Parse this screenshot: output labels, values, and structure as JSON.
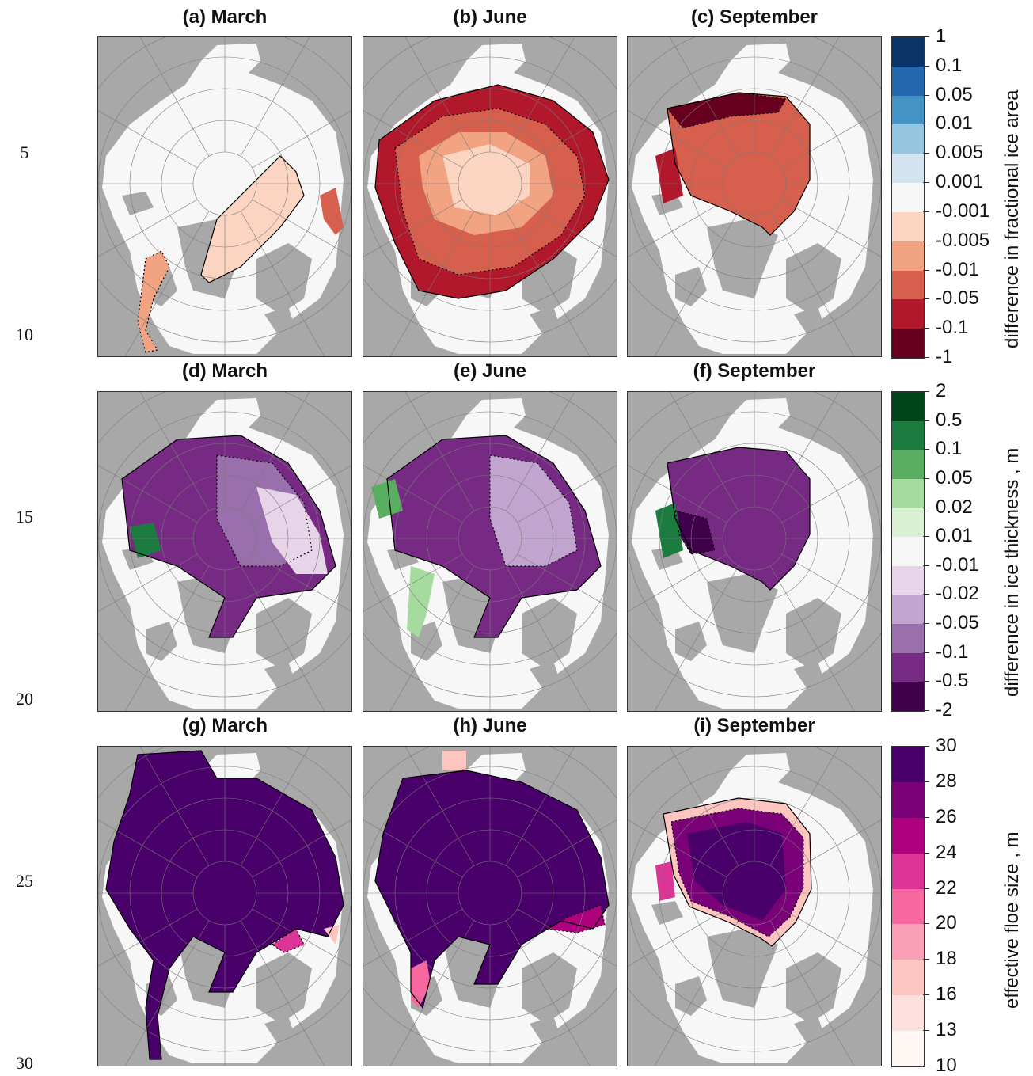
{
  "line_numbers": [
    "5",
    "10",
    "15",
    "20",
    "25",
    "30"
  ],
  "panel_titles": [
    "(a) March",
    "(b) June",
    "(c) September",
    "(d) March",
    "(e) June",
    "(f) September",
    "(g) March",
    "(h) June",
    "(i) September"
  ],
  "colorbars": [
    {
      "label": "difference in fractional ice area",
      "ticks": [
        "1",
        "0.1",
        "0.05",
        "0.01",
        "0.005",
        "0.001",
        "-0.001",
        "-0.005",
        "-0.01",
        "-0.05",
        "-0.1",
        "-1"
      ],
      "colors": [
        "#0b3466",
        "#2468ad",
        "#4495c6",
        "#94c6df",
        "#d2e4f0",
        "#f7f7f7",
        "#fbd5c1",
        "#f1a382",
        "#d6604d",
        "#b2182b",
        "#67001f"
      ]
    },
    {
      "label": "difference in ice thickness , m",
      "ticks": [
        "2",
        "0.5",
        "0.1",
        "0.05",
        "0.02",
        "0.01",
        "-0.01",
        "-0.02",
        "-0.05",
        "-0.1",
        "-0.5",
        "-2"
      ],
      "colors": [
        "#00441b",
        "#1c7b3e",
        "#5aae61",
        "#a6dba0",
        "#d9f0d3",
        "#f7f7f7",
        "#e7d4e8",
        "#c2a5cf",
        "#9970ab",
        "#762a83",
        "#40004b"
      ]
    },
    {
      "label": "effective floe size , m",
      "ticks": [
        "30",
        "28",
        "26",
        "24",
        "22",
        "20",
        "18",
        "16",
        "13",
        "10"
      ],
      "colors": [
        "#49006a",
        "#7a0177",
        "#ae017e",
        "#dd3497",
        "#f768a1",
        "#fa9fb5",
        "#fcc5c0",
        "#fde0dd",
        "#fff7f3"
      ]
    }
  ],
  "map_colors": {
    "land": "#a8a8a8",
    "ocean": "#f7f7f7",
    "grid": "#7a7a7a",
    "contour": "#000000"
  },
  "panel_fills": {
    "a": [
      "#fbd5c1",
      "#f1a382",
      "#d6604d"
    ],
    "b": [
      "#fbd5c1",
      "#f1a382",
      "#d6604d",
      "#b2182b"
    ],
    "c": [
      "#d6604d",
      "#b2182b",
      "#67001f"
    ],
    "d": [
      "#e7d4e8",
      "#9970ab",
      "#762a83",
      "#1c7b3e"
    ],
    "e": [
      "#a6dba0",
      "#c2a5cf",
      "#762a83",
      "#5aae61"
    ],
    "f": [
      "#762a83",
      "#40004b",
      "#1c7b3e"
    ],
    "g": [
      "#49006a",
      "#dd3497",
      "#fcc5c0"
    ],
    "h": [
      "#49006a",
      "#ae017e",
      "#f768a1",
      "#fcc5c0"
    ],
    "i": [
      "#49006a",
      "#7a0177",
      "#dd3497",
      "#fcc5c0"
    ]
  }
}
